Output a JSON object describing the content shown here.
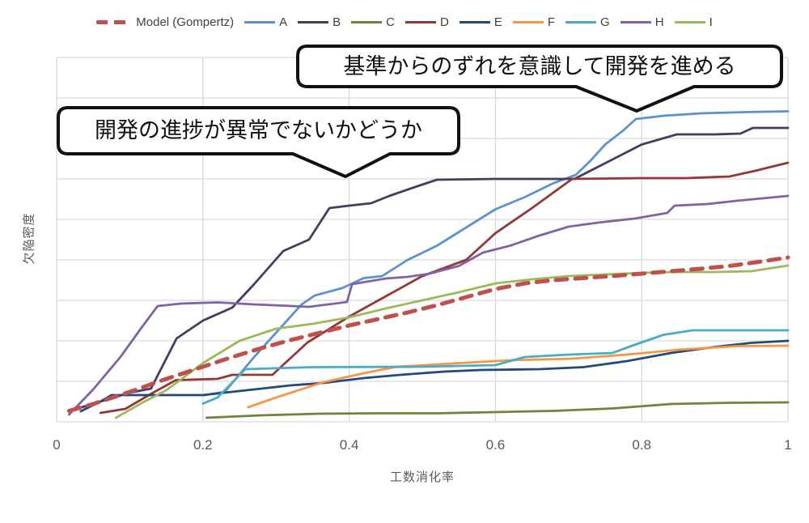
{
  "legend": {
    "items": [
      {
        "label": "Model (Gompertz)",
        "color": "#C0504D",
        "dashed": true
      },
      {
        "label": "A",
        "color": "#5E92CF",
        "dashed": false
      },
      {
        "label": "B",
        "color": "#4B3A5F",
        "dashed": false
      },
      {
        "label": "C",
        "color": "#6C8636",
        "dashed": false
      },
      {
        "label": "D",
        "color": "#943735",
        "dashed": false
      },
      {
        "label": "E",
        "color": "#25497B",
        "dashed": false
      },
      {
        "label": "F",
        "color": "#F79646",
        "dashed": false
      },
      {
        "label": "G",
        "color": "#4AACC5",
        "dashed": false
      },
      {
        "label": "H",
        "color": "#8064A2",
        "dashed": false
      },
      {
        "label": "I",
        "color": "#9BBB59",
        "dashed": false
      }
    ]
  },
  "callouts": [
    {
      "text": "基準からのずれを意識して開発を進める"
    },
    {
      "text": "開発の進捗が異常でないかどうか"
    }
  ],
  "chart_data": {
    "type": "line",
    "title": "",
    "xlabel": "工数消化率",
    "ylabel": "欠陥密度",
    "x_ticks": [
      "0",
      "0.2",
      "0.4",
      "0.6",
      "0.8",
      "1"
    ],
    "x_range": [
      0,
      1
    ],
    "y_range": [
      0,
      9
    ],
    "y_tick_labels_shown": false,
    "grid": true,
    "legend_position": "top",
    "gridline_color": "#D9D9D9",
    "axis_text_color": "#595959",
    "series": [
      {
        "name": "A",
        "color": "#5E92CF",
        "style": "solid",
        "points": [
          [
            0.202,
            0.66
          ],
          [
            0.23,
            0.74
          ],
          [
            0.27,
            1.6
          ],
          [
            0.3,
            2.2
          ],
          [
            0.335,
            2.9
          ],
          [
            0.353,
            3.12
          ],
          [
            0.39,
            3.3
          ],
          [
            0.42,
            3.55
          ],
          [
            0.445,
            3.6
          ],
          [
            0.48,
            4.0
          ],
          [
            0.52,
            4.35
          ],
          [
            0.56,
            4.8
          ],
          [
            0.6,
            5.25
          ],
          [
            0.64,
            5.55
          ],
          [
            0.68,
            5.9
          ],
          [
            0.71,
            6.1
          ],
          [
            0.73,
            6.45
          ],
          [
            0.75,
            6.85
          ],
          [
            0.775,
            7.2
          ],
          [
            0.792,
            7.48
          ],
          [
            0.83,
            7.56
          ],
          [
            0.88,
            7.62
          ],
          [
            0.94,
            7.65
          ],
          [
            1.0,
            7.67
          ]
        ]
      },
      {
        "name": "B",
        "color": "#4B3A5F",
        "style": "solid",
        "points": [
          [
            0.02,
            0.28
          ],
          [
            0.06,
            0.5
          ],
          [
            0.1,
            0.72
          ],
          [
            0.129,
            0.82
          ],
          [
            0.164,
            2.06
          ],
          [
            0.2,
            2.5
          ],
          [
            0.24,
            2.82
          ],
          [
            0.27,
            3.4
          ],
          [
            0.31,
            4.22
          ],
          [
            0.345,
            4.5
          ],
          [
            0.373,
            5.28
          ],
          [
            0.4,
            5.34
          ],
          [
            0.43,
            5.4
          ],
          [
            0.455,
            5.58
          ],
          [
            0.49,
            5.8
          ],
          [
            0.52,
            5.98
          ],
          [
            0.6,
            6.0
          ],
          [
            0.708,
            6.0
          ],
          [
            0.8,
            6.85
          ],
          [
            0.848,
            7.1
          ],
          [
            0.9,
            7.1
          ],
          [
            0.935,
            7.12
          ],
          [
            0.952,
            7.26
          ],
          [
            1.0,
            7.26
          ]
        ]
      },
      {
        "name": "C",
        "color": "#6C8636",
        "style": "solid",
        "points": [
          [
            0.205,
            0.1
          ],
          [
            0.28,
            0.16
          ],
          [
            0.36,
            0.2
          ],
          [
            0.44,
            0.21
          ],
          [
            0.52,
            0.21
          ],
          [
            0.6,
            0.24
          ],
          [
            0.68,
            0.27
          ],
          [
            0.76,
            0.33
          ],
          [
            0.84,
            0.44
          ],
          [
            0.92,
            0.47
          ],
          [
            1.0,
            0.48
          ]
        ]
      },
      {
        "name": "D",
        "color": "#943735",
        "style": "solid",
        "points": [
          [
            0.06,
            0.22
          ],
          [
            0.094,
            0.32
          ],
          [
            0.13,
            0.7
          ],
          [
            0.163,
            1.03
          ],
          [
            0.22,
            1.06
          ],
          [
            0.24,
            1.16
          ],
          [
            0.295,
            1.16
          ],
          [
            0.343,
            1.96
          ],
          [
            0.4,
            2.6
          ],
          [
            0.45,
            3.1
          ],
          [
            0.5,
            3.6
          ],
          [
            0.56,
            4.0
          ],
          [
            0.6,
            4.66
          ],
          [
            0.65,
            5.28
          ],
          [
            0.705,
            6.0
          ],
          [
            0.8,
            6.02
          ],
          [
            0.86,
            6.02
          ],
          [
            0.92,
            6.06
          ],
          [
            0.955,
            6.2
          ],
          [
            1.0,
            6.4
          ]
        ]
      },
      {
        "name": "E",
        "color": "#25497B",
        "style": "solid",
        "points": [
          [
            0.033,
            0.26
          ],
          [
            0.06,
            0.5
          ],
          [
            0.075,
            0.66
          ],
          [
            0.14,
            0.66
          ],
          [
            0.2,
            0.66
          ],
          [
            0.26,
            0.78
          ],
          [
            0.32,
            0.9
          ],
          [
            0.365,
            0.96
          ],
          [
            0.42,
            1.08
          ],
          [
            0.47,
            1.16
          ],
          [
            0.53,
            1.24
          ],
          [
            0.58,
            1.28
          ],
          [
            0.66,
            1.3
          ],
          [
            0.72,
            1.35
          ],
          [
            0.78,
            1.5
          ],
          [
            0.84,
            1.7
          ],
          [
            0.9,
            1.85
          ],
          [
            0.95,
            1.95
          ],
          [
            1.0,
            2.0
          ]
        ]
      },
      {
        "name": "F",
        "color": "#F79646",
        "style": "solid",
        "points": [
          [
            0.262,
            0.36
          ],
          [
            0.3,
            0.6
          ],
          [
            0.365,
            0.98
          ],
          [
            0.42,
            1.2
          ],
          [
            0.465,
            1.36
          ],
          [
            0.55,
            1.45
          ],
          [
            0.62,
            1.52
          ],
          [
            0.706,
            1.56
          ],
          [
            0.78,
            1.66
          ],
          [
            0.85,
            1.78
          ],
          [
            0.93,
            1.87
          ],
          [
            1.0,
            1.88
          ]
        ]
      },
      {
        "name": "G",
        "color": "#4AACC5",
        "style": "solid",
        "points": [
          [
            0.2,
            0.45
          ],
          [
            0.22,
            0.6
          ],
          [
            0.258,
            1.3
          ],
          [
            0.35,
            1.35
          ],
          [
            0.5,
            1.36
          ],
          [
            0.6,
            1.4
          ],
          [
            0.64,
            1.6
          ],
          [
            0.7,
            1.66
          ],
          [
            0.76,
            1.7
          ],
          [
            0.79,
            1.9
          ],
          [
            0.83,
            2.15
          ],
          [
            0.87,
            2.26
          ],
          [
            1.0,
            2.26
          ]
        ]
      },
      {
        "name": "H",
        "color": "#8064A2",
        "style": "solid",
        "points": [
          [
            0.017,
            0.18
          ],
          [
            0.05,
            0.8
          ],
          [
            0.088,
            1.62
          ],
          [
            0.115,
            2.3
          ],
          [
            0.138,
            2.86
          ],
          [
            0.17,
            2.92
          ],
          [
            0.22,
            2.95
          ],
          [
            0.27,
            2.9
          ],
          [
            0.31,
            2.87
          ],
          [
            0.345,
            2.84
          ],
          [
            0.38,
            2.92
          ],
          [
            0.397,
            2.96
          ],
          [
            0.404,
            3.4
          ],
          [
            0.45,
            3.54
          ],
          [
            0.48,
            3.58
          ],
          [
            0.51,
            3.66
          ],
          [
            0.55,
            3.85
          ],
          [
            0.583,
            4.18
          ],
          [
            0.62,
            4.35
          ],
          [
            0.66,
            4.6
          ],
          [
            0.7,
            4.82
          ],
          [
            0.74,
            4.92
          ],
          [
            0.79,
            5.02
          ],
          [
            0.835,
            5.16
          ],
          [
            0.845,
            5.34
          ],
          [
            0.89,
            5.38
          ],
          [
            0.93,
            5.46
          ],
          [
            1.0,
            5.58
          ]
        ]
      },
      {
        "name": "I",
        "color": "#9BBB59",
        "style": "solid",
        "points": [
          [
            0.081,
            0.1
          ],
          [
            0.12,
            0.5
          ],
          [
            0.15,
            0.78
          ],
          [
            0.2,
            1.45
          ],
          [
            0.25,
            2.0
          ],
          [
            0.3,
            2.3
          ],
          [
            0.35,
            2.42
          ],
          [
            0.4,
            2.58
          ],
          [
            0.45,
            2.8
          ],
          [
            0.5,
            3.0
          ],
          [
            0.55,
            3.2
          ],
          [
            0.6,
            3.42
          ],
          [
            0.65,
            3.52
          ],
          [
            0.7,
            3.6
          ],
          [
            0.75,
            3.64
          ],
          [
            0.8,
            3.68
          ],
          [
            0.85,
            3.7
          ],
          [
            0.9,
            3.7
          ],
          [
            0.95,
            3.72
          ],
          [
            1.0,
            3.86
          ]
        ]
      },
      {
        "name": "Model (Gompertz)",
        "color": "#C0504D",
        "style": "dashed",
        "points": [
          [
            0.017,
            0.27
          ],
          [
            0.05,
            0.44
          ],
          [
            0.08,
            0.62
          ],
          [
            0.11,
            0.8
          ],
          [
            0.14,
            1.0
          ],
          [
            0.17,
            1.18
          ],
          [
            0.2,
            1.36
          ],
          [
            0.24,
            1.6
          ],
          [
            0.28,
            1.82
          ],
          [
            0.32,
            2.02
          ],
          [
            0.36,
            2.2
          ],
          [
            0.4,
            2.38
          ],
          [
            0.44,
            2.54
          ],
          [
            0.48,
            2.7
          ],
          [
            0.52,
            2.88
          ],
          [
            0.56,
            3.08
          ],
          [
            0.6,
            3.28
          ],
          [
            0.64,
            3.42
          ],
          [
            0.68,
            3.5
          ],
          [
            0.72,
            3.55
          ],
          [
            0.76,
            3.6
          ],
          [
            0.8,
            3.66
          ],
          [
            0.84,
            3.72
          ],
          [
            0.88,
            3.78
          ],
          [
            0.92,
            3.85
          ],
          [
            0.96,
            3.95
          ],
          [
            1.0,
            4.06
          ]
        ]
      }
    ]
  }
}
